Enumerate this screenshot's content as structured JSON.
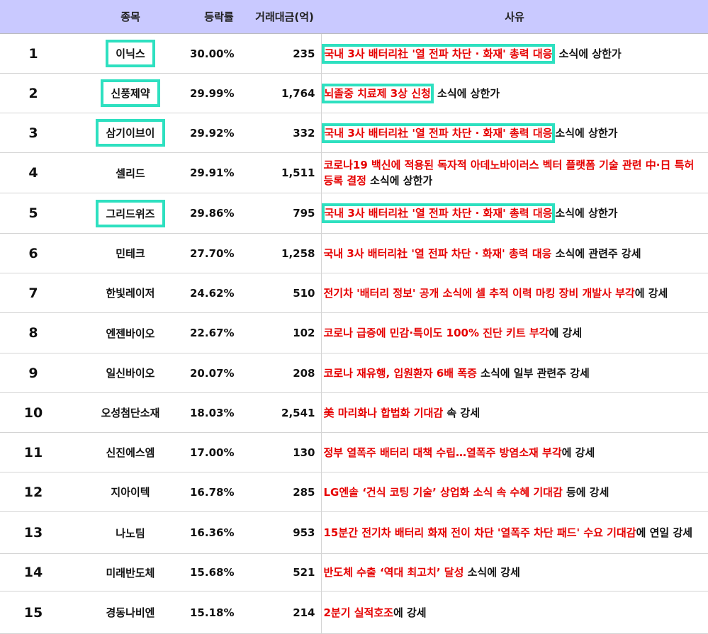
{
  "headers": {
    "rank": "",
    "name": "종목",
    "rate": "등락률",
    "volume": "거래대금(억)",
    "reason": "사유"
  },
  "accent_color": "#2ee0c0",
  "header_bg": "#c9c9ff",
  "highlight_color": "#e60000",
  "rows": [
    {
      "rank": "1",
      "name": "이닉스",
      "rate": "30.00%",
      "volume": "235",
      "reason_hl": "국내 3사 배터리社 '열 전파 차단 · 화재' 총력 대응",
      "reason_tail": " 소식에 상한가",
      "name_boxed": true,
      "reason_boxed": true
    },
    {
      "rank": "2",
      "name": "신풍제약",
      "rate": "29.99%",
      "volume": "1,764",
      "reason_hl": "뇌졸중 치료제 3상 신청",
      "reason_tail": " 소식에 상한가",
      "name_boxed": true,
      "reason_boxed": true
    },
    {
      "rank": "3",
      "name": "삼기이브이",
      "rate": "29.92%",
      "volume": "332",
      "reason_hl": "국내 3사 배터리社 '열 전파 차단 · 화재' 총력 대응",
      "reason_tail": "소식에 상한가",
      "name_boxed": true,
      "reason_boxed": true
    },
    {
      "rank": "4",
      "name": "셀리드",
      "rate": "29.91%",
      "volume": "1,511",
      "reason_hl": "코로나19 백신에 적용된 독자적 아데노바이러스 벡터 플랫폼 기술 관련 中·日 특허 등록 결정",
      "reason_tail": " 소식에 상한가",
      "name_boxed": false,
      "reason_boxed": false
    },
    {
      "rank": "5",
      "name": "그리드위즈",
      "rate": "29.86%",
      "volume": "795",
      "reason_hl": "국내 3사 배터리社 '열 전파 차단 · 화재' 총력 대응",
      "reason_tail": "소식에 상한가",
      "name_boxed": true,
      "reason_boxed": true
    },
    {
      "rank": "6",
      "name": "민테크",
      "rate": "27.70%",
      "volume": "1,258",
      "reason_hl": "국내 3사 배터리社 '열 전파 차단 · 화재' 총력 대응",
      "reason_tail": " 소식에 관련주 강세",
      "name_boxed": false,
      "reason_boxed": false
    },
    {
      "rank": "7",
      "name": "한빛레이저",
      "rate": "24.62%",
      "volume": "510",
      "reason_hl": "전기차 '배터리 정보' 공개 소식에 셀 추적 이력 마킹 장비 개발사 부각",
      "reason_tail": "에 강세",
      "name_boxed": false,
      "reason_boxed": false
    },
    {
      "rank": "8",
      "name": "엔젠바이오",
      "rate": "22.67%",
      "volume": "102",
      "reason_hl": "코로나 급증에 민감·특이도 100% 진단 키트 부각",
      "reason_tail": "에 강세",
      "name_boxed": false,
      "reason_boxed": false
    },
    {
      "rank": "9",
      "name": "일신바이오",
      "rate": "20.07%",
      "volume": "208",
      "reason_hl": "코로나 재유행, 입원환자 6배 폭증",
      "reason_tail": " 소식에 일부 관련주 강세",
      "name_boxed": false,
      "reason_boxed": false
    },
    {
      "rank": "10",
      "name": "오성첨단소재",
      "rate": "18.03%",
      "volume": "2,541",
      "reason_hl": "美 마리화나 합법화 기대감",
      "reason_tail": " 속 강세",
      "name_boxed": false,
      "reason_boxed": false
    },
    {
      "rank": "11",
      "name": "신진에스엠",
      "rate": "17.00%",
      "volume": "130",
      "reason_hl": "정부 열폭주 배터리 대책 수립…열폭주 방염소재 부각",
      "reason_tail": "에 강세",
      "name_boxed": false,
      "reason_boxed": false
    },
    {
      "rank": "12",
      "name": "지아이텍",
      "rate": "16.78%",
      "volume": "285",
      "reason_hl": "LG엔솔 ‘건식 코팅 기술’ 상업화 소식 속 수혜 기대감",
      "reason_tail": " 등에 강세",
      "name_boxed": false,
      "reason_boxed": false
    },
    {
      "rank": "13",
      "name": "나노팀",
      "rate": "16.36%",
      "volume": "953",
      "reason_hl": "15분간 전기차 배터리 화재 전이 차단 '열폭주 차단 패드' 수요 기대감",
      "reason_tail": "에 연일 강세",
      "name_boxed": false,
      "reason_boxed": false
    },
    {
      "rank": "14",
      "name": "미래반도체",
      "rate": "15.68%",
      "volume": "521",
      "reason_hl": "반도체 수출 ‘역대 최고치’ 달성",
      "reason_tail": " 소식에 강세",
      "name_boxed": false,
      "reason_boxed": false
    },
    {
      "rank": "15",
      "name": "경동나비엔",
      "rate": "15.18%",
      "volume": "214",
      "reason_hl": "2분기 실적호조",
      "reason_tail": "에 강세",
      "name_boxed": false,
      "reason_boxed": false
    }
  ]
}
